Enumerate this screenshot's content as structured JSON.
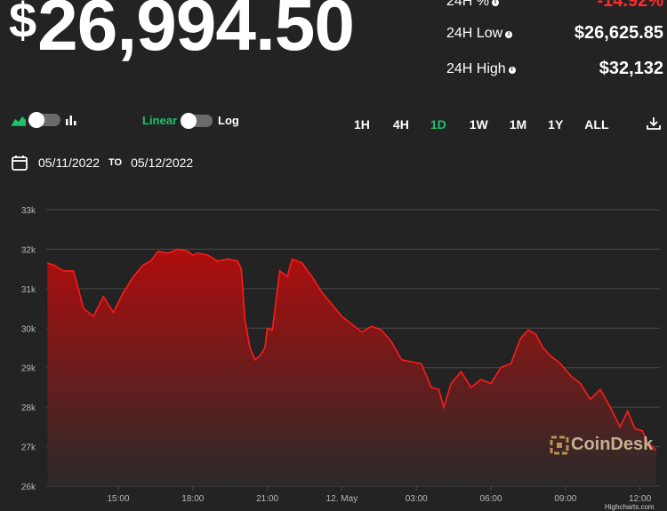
{
  "price": {
    "currency": "$",
    "value": "26,994.50"
  },
  "stats": [
    {
      "label": "24H %",
      "value": "-14.92%",
      "color": "#ff2b2b"
    },
    {
      "label": "24H Low",
      "value": "$26,625.85"
    },
    {
      "label": "24H High",
      "value": "$32,132"
    }
  ],
  "controls": {
    "chart_type_icons": [
      "area-chart-icon",
      "bar-chart-icon"
    ],
    "scale_linear": "Linear",
    "scale_log": "Log",
    "ranges": [
      "1H",
      "4H",
      "1D",
      "1W",
      "1M",
      "1Y",
      "ALL"
    ],
    "active_range": "1D",
    "download_icon": "download-icon"
  },
  "dates": {
    "from": "05/11/2022",
    "to_label": "TO",
    "to": "05/12/2022"
  },
  "watermark": "CoinDesk",
  "credit": "Highcharts.com",
  "colors": {
    "accent_green": "#1fc26b",
    "down_red": "#ff2b2b",
    "area_top": "#b00d0d",
    "background": "#232323"
  },
  "chart_data": {
    "type": "area",
    "y_tick_labels": [
      "26k",
      "27k",
      "28k",
      "29k",
      "30k",
      "31k",
      "32k",
      "33k"
    ],
    "ylim": [
      26000,
      33000
    ],
    "x_tick_labels": [
      "15:00",
      "18:00",
      "21:00",
      "12. May",
      "03:00",
      "06:00",
      "09:00",
      "12:00"
    ],
    "x_tick_times": [
      15,
      18,
      21,
      24,
      27,
      30,
      33,
      36
    ],
    "xlim": [
      12.1,
      36.8
    ],
    "series": [
      {
        "x": [
          12.15,
          12.4,
          12.8,
          13.2,
          13.6,
          14.0,
          14.4,
          14.8,
          15.2,
          15.6,
          16.0,
          16.3,
          16.6,
          17.0,
          17.4,
          17.8,
          18.0,
          18.2,
          18.6,
          19.0,
          19.4,
          19.8,
          19.95,
          20.1,
          20.3,
          20.5,
          20.7,
          20.9,
          21.0,
          21.2,
          21.5,
          21.8,
          22.0,
          22.4,
          22.8,
          23.2,
          23.6,
          24.0,
          24.4,
          24.8,
          25.2,
          25.6,
          26.0,
          26.4,
          26.8,
          27.2,
          27.6,
          27.9,
          28.1,
          28.4,
          28.8,
          29.2,
          29.6,
          30.0,
          30.4,
          30.8,
          31.2,
          31.5,
          31.8,
          32.1,
          32.4,
          32.8,
          33.2,
          33.6,
          34.0,
          34.4,
          34.8,
          35.2,
          35.5,
          35.8,
          36.1,
          36.3,
          36.5,
          36.65
        ],
        "y": [
          31650,
          31600,
          31450,
          31450,
          30500,
          30300,
          30800,
          30400,
          30900,
          31300,
          31600,
          31700,
          31950,
          31900,
          32000,
          31950,
          31850,
          31900,
          31850,
          31700,
          31750,
          31700,
          31500,
          30200,
          29500,
          29200,
          29300,
          29500,
          30000,
          29950,
          31450,
          31300,
          31750,
          31650,
          31300,
          30900,
          30600,
          30300,
          30100,
          29900,
          30050,
          29950,
          29650,
          29200,
          29150,
          29100,
          28500,
          28450,
          28000,
          28600,
          28900,
          28500,
          28700,
          28600,
          29000,
          29100,
          29750,
          29950,
          29850,
          29500,
          29300,
          29100,
          28800,
          28600,
          28200,
          28450,
          28000,
          27500,
          27900,
          27450,
          27400,
          27100,
          27000,
          26900
        ]
      }
    ]
  }
}
